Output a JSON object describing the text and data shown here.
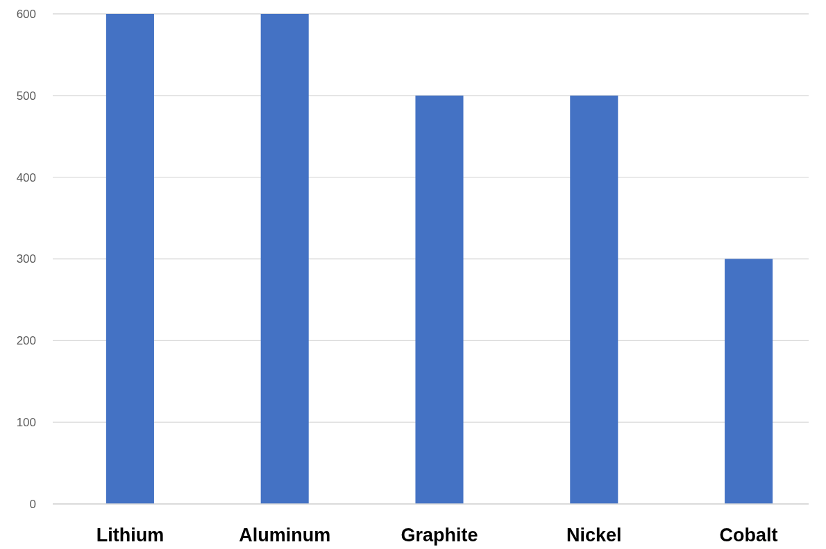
{
  "chart_data": {
    "type": "bar",
    "categories": [
      "Lithium",
      "Aluminum",
      "Graphite",
      "Nickel",
      "Cobalt"
    ],
    "values": [
      600,
      600,
      500,
      500,
      300
    ],
    "color": "#4472c4",
    "ylim": [
      0,
      600
    ],
    "yticks": [
      0,
      100,
      200,
      300,
      400,
      500,
      600
    ],
    "grid": "y"
  }
}
